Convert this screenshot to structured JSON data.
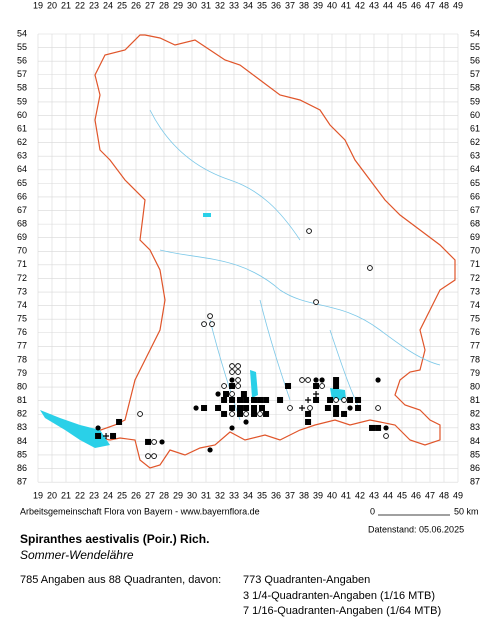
{
  "grid": {
    "columns": [
      19,
      20,
      21,
      22,
      23,
      24,
      25,
      26,
      27,
      28,
      29,
      30,
      31,
      32,
      33,
      34,
      35,
      36,
      37,
      38,
      39,
      40,
      41,
      42,
      43,
      44,
      45,
      46,
      47,
      48,
      49
    ],
    "rows": [
      54,
      55,
      56,
      57,
      58,
      59,
      60,
      61,
      62,
      63,
      64,
      65,
      66,
      67,
      68,
      69,
      70,
      71,
      72,
      73,
      74,
      75,
      76,
      77,
      78,
      79,
      80,
      81,
      82,
      83,
      84,
      85,
      86,
      87
    ]
  },
  "records": [
    [
      42.71,
      71.23,
      "open"
    ],
    [
      38.86,
      73.74,
      "open"
    ],
    [
      31.29,
      74.77,
      "open"
    ],
    [
      30.86,
      75.36,
      "open"
    ],
    [
      31.43,
      75.36,
      "open"
    ],
    [
      38.36,
      68.51,
      "open"
    ],
    [
      32.86,
      78.45,
      "open"
    ],
    [
      33.29,
      78.45,
      "open"
    ],
    [
      32.86,
      78.89,
      "open"
    ],
    [
      33.29,
      78.89,
      "open"
    ],
    [
      33.29,
      79.48,
      "open"
    ],
    [
      32.86,
      79.48,
      "dot"
    ],
    [
      37.86,
      79.48,
      "open"
    ],
    [
      38.29,
      79.48,
      "open"
    ],
    [
      38.86,
      79.48,
      "dot"
    ],
    [
      39.29,
      79.48,
      "dot"
    ],
    [
      40.29,
      79.48,
      "square"
    ],
    [
      43.29,
      79.48,
      "dot"
    ],
    [
      32.86,
      79.92,
      "square"
    ],
    [
      32.29,
      79.92,
      "open"
    ],
    [
      33.29,
      79.92,
      "open"
    ],
    [
      36.86,
      79.92,
      "square"
    ],
    [
      38.86,
      79.92,
      "square"
    ],
    [
      39.29,
      79.92,
      "open"
    ],
    [
      40.29,
      79.92,
      "square"
    ],
    [
      31.86,
      80.51,
      "dot"
    ],
    [
      32.43,
      80.51,
      "square"
    ],
    [
      32.86,
      80.51,
      "open"
    ],
    [
      33.71,
      80.51,
      "square"
    ],
    [
      38.86,
      80.51,
      "plus"
    ],
    [
      32.29,
      80.95,
      "square"
    ],
    [
      32.86,
      80.95,
      "square"
    ],
    [
      33.43,
      80.95,
      "square"
    ],
    [
      33.86,
      80.95,
      "square"
    ],
    [
      34.43,
      80.95,
      "square"
    ],
    [
      34.86,
      80.95,
      "square"
    ],
    [
      35.29,
      80.95,
      "square"
    ],
    [
      36.29,
      80.95,
      "square"
    ],
    [
      38.29,
      80.95,
      "plus"
    ],
    [
      38.86,
      80.95,
      "square"
    ],
    [
      39.86,
      80.95,
      "square"
    ],
    [
      40.29,
      80.95,
      "open"
    ],
    [
      40.86,
      80.95,
      "open"
    ],
    [
      41.29,
      80.95,
      "square"
    ],
    [
      41.86,
      80.95,
      "square"
    ],
    [
      30.29,
      81.54,
      "dot"
    ],
    [
      30.86,
      81.54,
      "square"
    ],
    [
      31.86,
      81.54,
      "square"
    ],
    [
      32.86,
      81.54,
      "square"
    ],
    [
      33.43,
      81.54,
      "square"
    ],
    [
      33.86,
      81.54,
      "square"
    ],
    [
      34.43,
      81.54,
      "square"
    ],
    [
      35.0,
      81.54,
      "square"
    ],
    [
      37.0,
      81.54,
      "open"
    ],
    [
      37.86,
      81.54,
      "plus"
    ],
    [
      38.43,
      81.54,
      "open"
    ],
    [
      39.71,
      81.54,
      "square"
    ],
    [
      40.29,
      81.54,
      "square"
    ],
    [
      41.29,
      81.54,
      "dot"
    ],
    [
      41.86,
      81.54,
      "square"
    ],
    [
      43.29,
      81.54,
      "open"
    ],
    [
      26.29,
      81.98,
      "open"
    ],
    [
      32.29,
      81.98,
      "square"
    ],
    [
      32.86,
      81.98,
      "open"
    ],
    [
      33.43,
      81.98,
      "square"
    ],
    [
      33.86,
      81.98,
      "open"
    ],
    [
      34.43,
      81.98,
      "square"
    ],
    [
      34.86,
      81.98,
      "open"
    ],
    [
      35.29,
      81.98,
      "square"
    ],
    [
      38.29,
      81.98,
      "square"
    ],
    [
      40.29,
      81.98,
      "square"
    ],
    [
      40.86,
      81.98,
      "square"
    ],
    [
      38.29,
      82.57,
      "square"
    ],
    [
      24.79,
      82.57,
      "square"
    ],
    [
      33.86,
      82.57,
      "dot"
    ],
    [
      23.29,
      83.01,
      "dot"
    ],
    [
      32.86,
      83.01,
      "dot"
    ],
    [
      42.86,
      83.01,
      "square"
    ],
    [
      43.29,
      83.01,
      "square"
    ],
    [
      43.86,
      83.01,
      "dot"
    ],
    [
      23.29,
      83.6,
      "square"
    ],
    [
      23.86,
      83.6,
      "plus"
    ],
    [
      24.36,
      83.6,
      "square"
    ],
    [
      43.86,
      83.6,
      "open"
    ],
    [
      26.86,
      84.04,
      "square"
    ],
    [
      27.29,
      84.04,
      "open"
    ],
    [
      27.86,
      84.04,
      "dot"
    ],
    [
      31.29,
      84.63,
      "dot"
    ],
    [
      26.86,
      85.08,
      "open"
    ],
    [
      27.29,
      85.08,
      "open"
    ]
  ],
  "footer": {
    "credit": "Arbeitsgemeinschaft Flora von Bayern - www.bayernflora.de",
    "date": "Datenstand: 05.06.2025",
    "scale_start": "0",
    "scale_end": "50 km"
  },
  "species": {
    "name": "Spiranthes aestivalis (Poir.) Rich.",
    "common": "Sommer-Wendelähre"
  },
  "stats": {
    "total": "785 Angaben aus 88 Quadranten, davon:",
    "quadrant": "773 Quadranten-Angaben",
    "quarter": "3 1/4-Quadranten-Angaben (1/16 MTB)",
    "sixteenth": "7 1/16-Quadranten-Angaben (1/64 MTB)"
  }
}
